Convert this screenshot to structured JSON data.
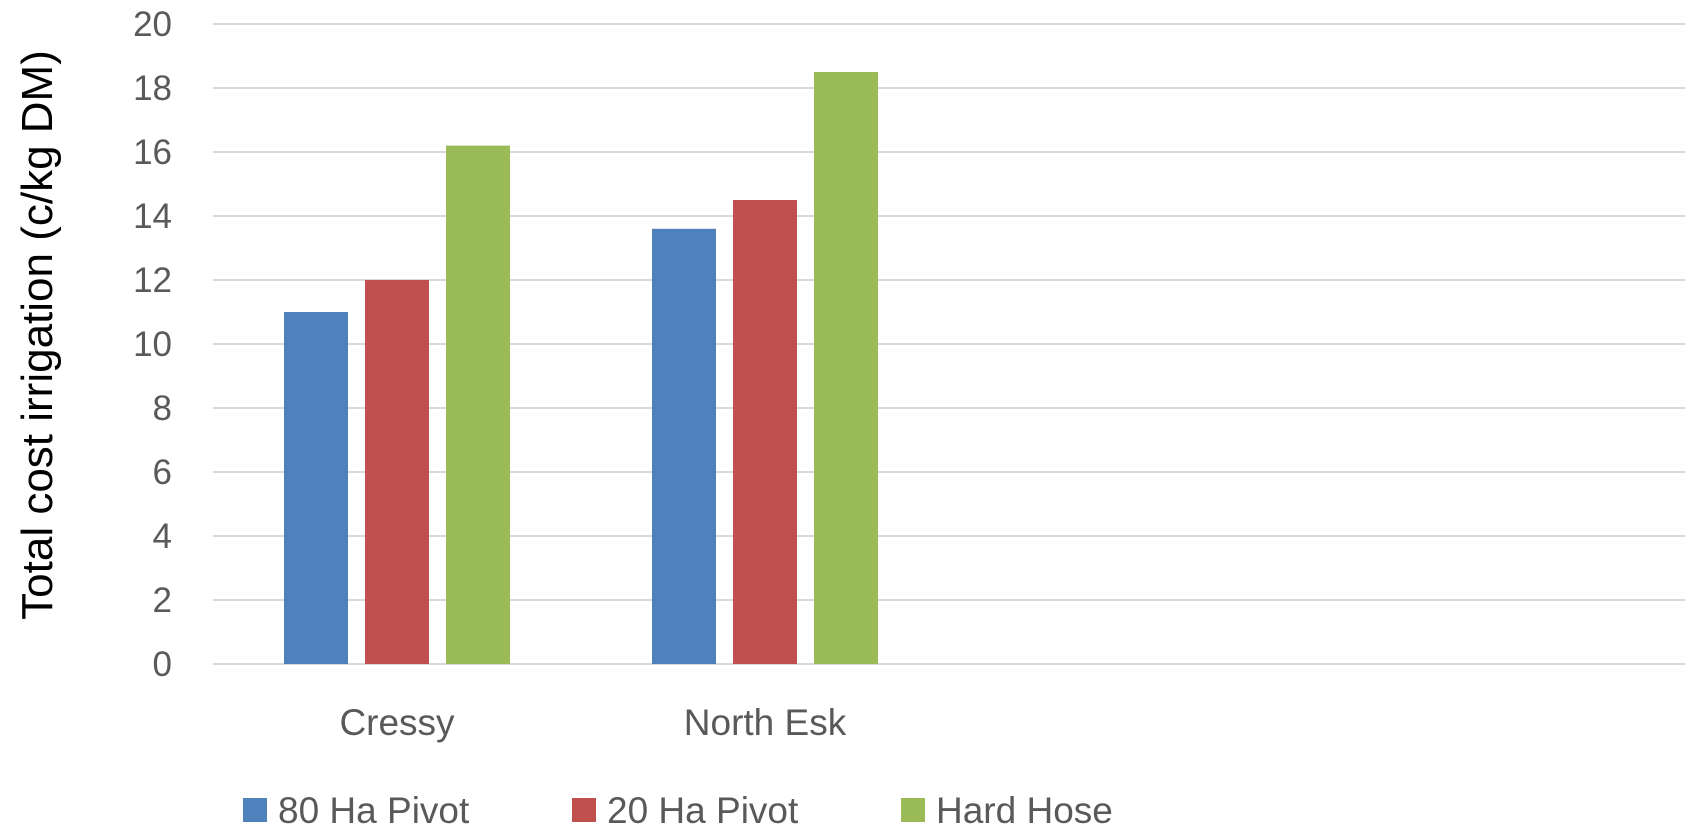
{
  "chart_data": {
    "type": "bar",
    "title": "",
    "xlabel": "",
    "ylabel": "Total cost irrigation (c/kg DM)",
    "categories": [
      "Cressy",
      "North Esk"
    ],
    "series": [
      {
        "name": "80 Ha Pivot",
        "color": "#4f81bd",
        "values": [
          11.0,
          13.6
        ]
      },
      {
        "name": "20 Ha Pivot",
        "color": "#c0504d",
        "values": [
          12.0,
          14.5
        ]
      },
      {
        "name": "Hard Hose",
        "color": "#9bbb59",
        "values": [
          16.2,
          18.5
        ]
      }
    ],
    "ylim": [
      0,
      20
    ],
    "yticks": [
      0,
      2,
      4,
      6,
      8,
      10,
      12,
      14,
      16,
      18,
      20
    ],
    "category_slots": 4,
    "grid": true,
    "legend_position": "bottom"
  }
}
